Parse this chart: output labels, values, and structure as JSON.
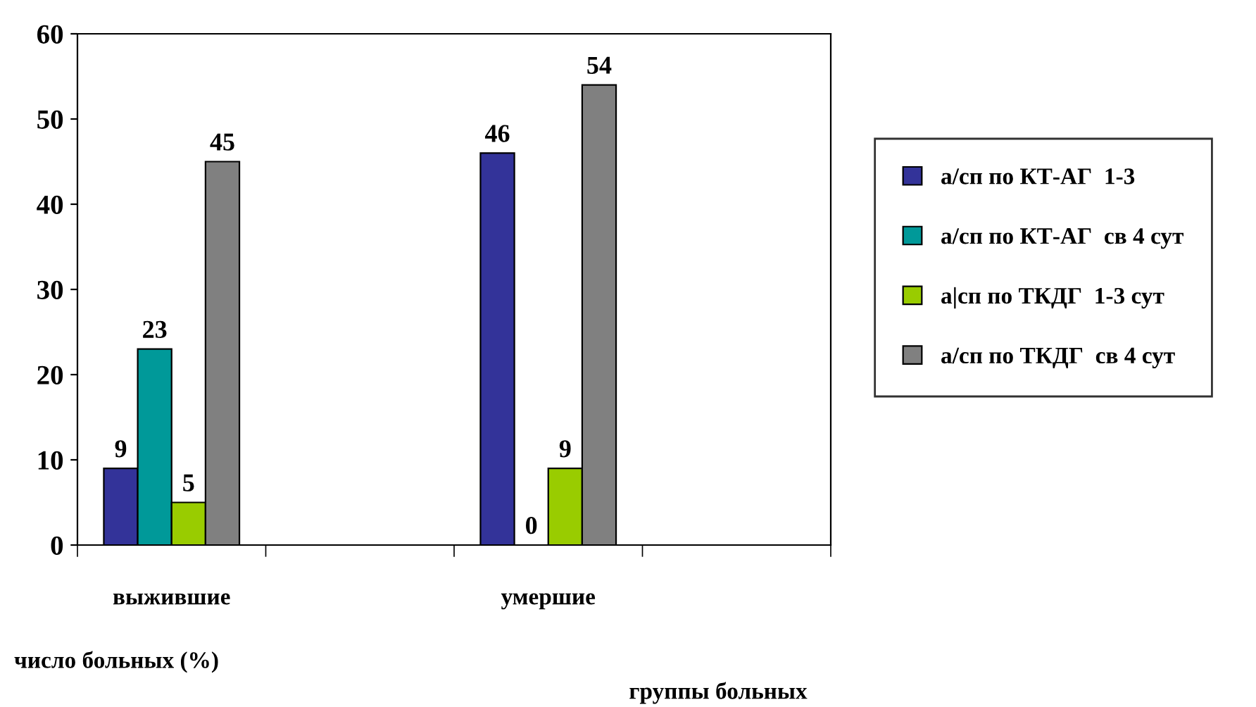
{
  "chart_data": {
    "type": "bar",
    "categories": [
      "выжившие",
      null,
      "умершие",
      null
    ],
    "series": [
      {
        "name": "а/сп по КТ-АГ  1-3",
        "color": "#333399",
        "values": [
          9,
          null,
          46,
          null
        ]
      },
      {
        "name": "а/сп по КТ-АГ  св 4 сут",
        "color": "#009999",
        "values": [
          23,
          null,
          0,
          null
        ]
      },
      {
        "name": "а|сп по ТКДГ  1-3 сут",
        "color": "#99cc00",
        "values": [
          5,
          null,
          9,
          null
        ]
      },
      {
        "name": "а/сп по ТКДГ  св 4 сут",
        "color": "#808080",
        "values": [
          45,
          null,
          54,
          null
        ]
      }
    ],
    "ylim": [
      0,
      60
    ],
    "yticks": [
      0,
      10,
      20,
      30,
      40,
      50,
      60
    ],
    "ylabel": "число больных (%)",
    "xlabel": "группы больных",
    "data_labels": true,
    "legend": "right",
    "grid": false
  }
}
